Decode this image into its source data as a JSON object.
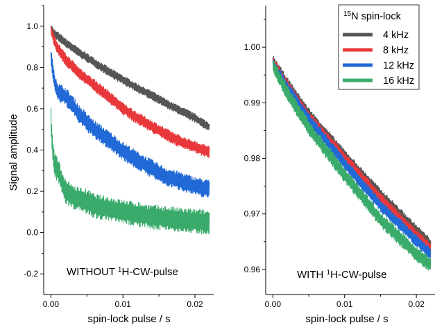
{
  "chart_data": [
    {
      "type": "line",
      "title": "",
      "xlabel": "spin-lock pulse / s",
      "ylabel": "Signal amplitude",
      "annotation": {
        "prefix": "WITHOUT ",
        "sup": "1",
        "suffix": "H-CW-pulse"
      },
      "xlim": [
        -0.001,
        0.0226
      ],
      "ylim": [
        -0.3,
        1.1
      ],
      "xticks": [
        0.0,
        0.01,
        0.02
      ],
      "xtick_labels": [
        "0.00",
        "0.01",
        "0.02"
      ],
      "yticks": [
        -0.2,
        0.0,
        0.2,
        0.4,
        0.6,
        0.8,
        1.0
      ],
      "ytick_labels": [
        "-0.2",
        "0.0",
        "0.2",
        "0.4",
        "0.6",
        "0.8",
        "1.0"
      ],
      "grid": false,
      "series": [
        {
          "name": "4 kHz",
          "color": "#555555",
          "band": 0.022,
          "x": [
            0,
            0.0005,
            0.001,
            0.002,
            0.004,
            0.006,
            0.008,
            0.01,
            0.012,
            0.014,
            0.016,
            0.018,
            0.02,
            0.022
          ],
          "y": [
            0.99,
            0.96,
            0.95,
            0.92,
            0.87,
            0.825,
            0.78,
            0.74,
            0.7,
            0.665,
            0.625,
            0.59,
            0.555,
            0.51
          ]
        },
        {
          "name": "8 kHz",
          "color": "#e8383b",
          "band": 0.03,
          "x": [
            0,
            0.0005,
            0.001,
            0.002,
            0.004,
            0.006,
            0.008,
            0.01,
            0.012,
            0.014,
            0.016,
            0.018,
            0.02,
            0.022
          ],
          "y": [
            0.98,
            0.93,
            0.89,
            0.84,
            0.77,
            0.715,
            0.66,
            0.6,
            0.555,
            0.515,
            0.475,
            0.44,
            0.415,
            0.39
          ]
        },
        {
          "name": "12 kHz",
          "color": "#2169d6",
          "band": 0.045,
          "x": [
            0,
            0.0003,
            0.0006,
            0.001,
            0.002,
            0.003,
            0.004,
            0.006,
            0.008,
            0.01,
            0.012,
            0.014,
            0.016,
            0.018,
            0.02,
            0.022
          ],
          "y": [
            0.85,
            0.78,
            0.72,
            0.68,
            0.66,
            0.62,
            0.57,
            0.5,
            0.45,
            0.395,
            0.35,
            0.31,
            0.27,
            0.25,
            0.225,
            0.21
          ]
        },
        {
          "name": "16 kHz",
          "color": "#3aab6b",
          "band": 0.06,
          "x": [
            0,
            0.0002,
            0.0005,
            0.001,
            0.0015,
            0.002,
            0.003,
            0.004,
            0.005,
            0.006,
            0.008,
            0.01,
            0.012,
            0.014,
            0.016,
            0.018,
            0.02,
            0.022
          ],
          "y": [
            0.55,
            0.42,
            0.33,
            0.3,
            0.25,
            0.2,
            0.175,
            0.16,
            0.15,
            0.13,
            0.115,
            0.1,
            0.09,
            0.075,
            0.07,
            0.06,
            0.055,
            0.05
          ]
        }
      ]
    },
    {
      "type": "line",
      "title": "",
      "xlabel": "spin-lock pulse / s",
      "ylabel": "",
      "annotation": {
        "prefix": "WITH ",
        "sup": "1",
        "suffix": "H-CW-pulse"
      },
      "xlim": [
        -0.001,
        0.0226
      ],
      "ylim": [
        0.9555,
        1.0075
      ],
      "xticks": [
        0.0,
        0.01,
        0.02
      ],
      "xtick_labels": [
        "0.00",
        "0.01",
        "0.02"
      ],
      "yticks": [
        0.96,
        0.97,
        0.98,
        0.99,
        1.0
      ],
      "ytick_labels": [
        "0.96",
        "0.97",
        "0.98",
        "0.99",
        "1.00"
      ],
      "grid": false,
      "legend": {
        "placement": "top-right",
        "title_sup": "15",
        "title_text": "N spin-lock",
        "entries": [
          "4 kHz",
          "8 kHz",
          "12 kHz",
          "16 kHz"
        ]
      },
      "series": [
        {
          "name": "4 kHz",
          "color": "#555555",
          "band": 0.0011,
          "x": [
            0,
            0.0005,
            0.002,
            0.005,
            0.01,
            0.015,
            0.02,
            0.022
          ],
          "y": [
            0.9975,
            0.9965,
            0.9935,
            0.988,
            0.9805,
            0.9735,
            0.967,
            0.9645
          ]
        },
        {
          "name": "8 kHz",
          "color": "#e8383b",
          "band": 0.0011,
          "x": [
            0,
            0.0005,
            0.002,
            0.005,
            0.01,
            0.015,
            0.02,
            0.022
          ],
          "y": [
            0.9972,
            0.9962,
            0.9932,
            0.9875,
            0.98,
            0.9727,
            0.9662,
            0.9637
          ]
        },
        {
          "name": "12 kHz",
          "color": "#2169d6",
          "band": 0.0011,
          "x": [
            0,
            0.0005,
            0.002,
            0.005,
            0.01,
            0.015,
            0.02,
            0.022
          ],
          "y": [
            0.997,
            0.996,
            0.9928,
            0.987,
            0.979,
            0.9715,
            0.9652,
            0.9628
          ]
        },
        {
          "name": "16 kHz",
          "color": "#3aab6b",
          "band": 0.0014,
          "x": [
            0,
            0.0005,
            0.002,
            0.005,
            0.01,
            0.015,
            0.02,
            0.022
          ],
          "y": [
            0.9968,
            0.9955,
            0.9918,
            0.9855,
            0.977,
            0.969,
            0.9628,
            0.9608
          ]
        }
      ]
    }
  ]
}
